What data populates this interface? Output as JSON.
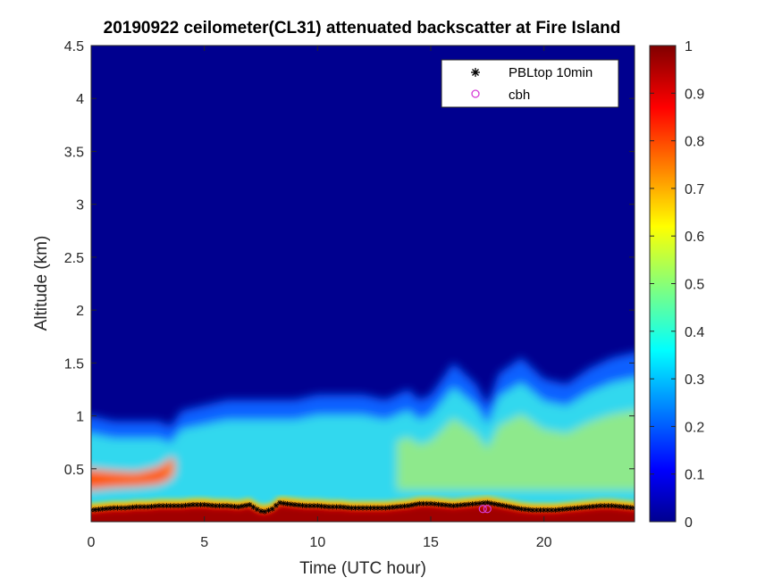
{
  "chart_data": {
    "type": "heatmap",
    "title": "20190922 ceilometer(CL31) attenuated backscatter at Fire Island",
    "xlabel": "Time (UTC hour)",
    "ylabel": "Altitude (km)",
    "xlim": [
      0,
      24
    ],
    "ylim": [
      0,
      4.5
    ],
    "xticks": [
      "0",
      "5",
      "10",
      "15",
      "20"
    ],
    "yticks": [
      "0.5",
      "1",
      "1.5",
      "2",
      "2.5",
      "3",
      "3.5",
      "4",
      "4.5"
    ],
    "colorbar": {
      "range": [
        0,
        1
      ],
      "colormap": "jet",
      "ticks": [
        "0",
        "0.1",
        "0.2",
        "0.3",
        "0.4",
        "0.5",
        "0.6",
        "0.7",
        "0.8",
        "0.9",
        "1"
      ]
    },
    "legend": {
      "placement": "top-right",
      "entries": [
        {
          "label": "PBLtop 10min",
          "marker": "*",
          "color": "#000000"
        },
        {
          "label": "cbh",
          "marker": "o",
          "color": "#d63cd6"
        }
      ]
    },
    "mixed_layer_top_km": {
      "hours": [
        0,
        1,
        2,
        3,
        3.5,
        4,
        5,
        6,
        7,
        8,
        9,
        10,
        11,
        12,
        13,
        14,
        14.5,
        15,
        16,
        17,
        17.5,
        18,
        19,
        20,
        21,
        22,
        23,
        24
      ],
      "altitude": [
        1.0,
        0.95,
        0.95,
        0.95,
        0.9,
        1.05,
        1.1,
        1.15,
        1.15,
        1.15,
        1.15,
        1.2,
        1.2,
        1.2,
        1.15,
        1.25,
        1.15,
        1.2,
        1.5,
        1.3,
        1.1,
        1.4,
        1.55,
        1.35,
        1.3,
        1.45,
        1.55,
        1.6
      ]
    },
    "residual_layer_km": {
      "hours": [
        0,
        1,
        2,
        3,
        3.5,
        4
      ],
      "bottom": [
        0.3,
        0.32,
        0.33,
        0.35,
        0.4,
        0.55
      ],
      "top": [
        0.5,
        0.48,
        0.47,
        0.52,
        0.6,
        0.6
      ]
    },
    "pbltop_10min": {
      "hours": [
        0,
        0.5,
        1,
        1.5,
        2,
        2.5,
        3,
        3.5,
        4,
        4.5,
        5,
        5.5,
        6,
        6.5,
        7,
        7.3,
        7.6,
        8,
        8.3,
        8.6,
        9,
        9.5,
        10,
        10.5,
        11,
        11.5,
        12,
        12.5,
        13,
        13.5,
        14,
        14.5,
        15,
        15.5,
        16,
        16.5,
        17,
        17.5,
        18,
        18.5,
        19,
        19.5,
        20,
        20.5,
        21,
        21.5,
        22,
        22.5,
        23,
        23.5,
        24
      ],
      "altitude": [
        0.11,
        0.12,
        0.13,
        0.13,
        0.14,
        0.14,
        0.15,
        0.15,
        0.15,
        0.16,
        0.16,
        0.15,
        0.15,
        0.14,
        0.16,
        0.12,
        0.09,
        0.12,
        0.18,
        0.17,
        0.16,
        0.15,
        0.15,
        0.14,
        0.14,
        0.13,
        0.13,
        0.13,
        0.13,
        0.14,
        0.15,
        0.17,
        0.17,
        0.16,
        0.15,
        0.16,
        0.17,
        0.18,
        0.16,
        0.14,
        0.12,
        0.11,
        0.11,
        0.11,
        0.12,
        0.13,
        0.14,
        0.15,
        0.15,
        0.14,
        0.13
      ]
    },
    "cbh": {
      "hours": [
        17.3,
        17.5
      ],
      "altitude": [
        0.12,
        0.12
      ]
    }
  }
}
